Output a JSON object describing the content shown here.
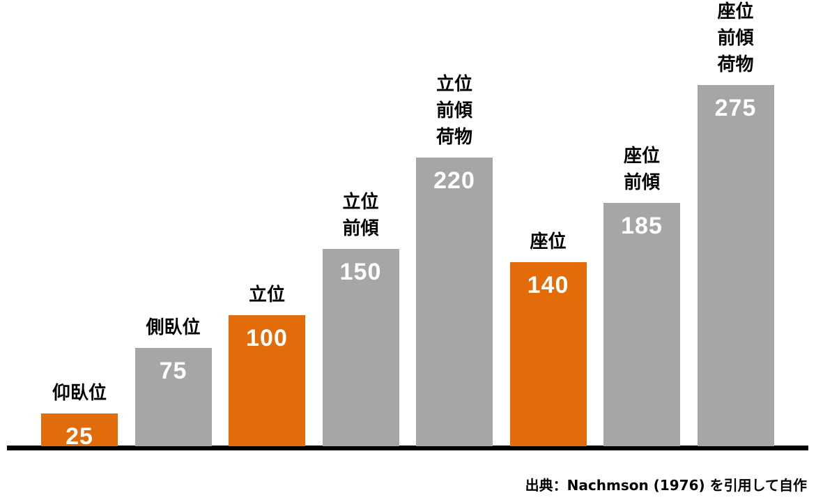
{
  "chart_data": {
    "type": "bar",
    "categories": [
      "仰臥位",
      "側臥位",
      "立位",
      "立位\n前傾",
      "立位\n前傾\n荷物",
      "座位",
      "座位\n前傾",
      "座位\n前傾\n荷物"
    ],
    "values": [
      25,
      75,
      100,
      150,
      220,
      140,
      185,
      275
    ],
    "colors": [
      "#e36c0a",
      "#a6a6a6",
      "#e36c0a",
      "#a6a6a6",
      "#a6a6a6",
      "#e36c0a",
      "#a6a6a6",
      "#a6a6a6"
    ],
    "source": "出典：Nachmson (1976) を引用して自作"
  }
}
